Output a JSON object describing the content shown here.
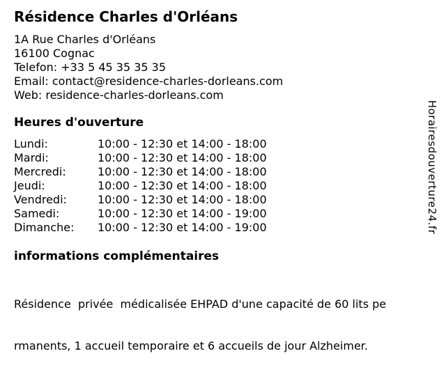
{
  "colors": {
    "text": "#000000",
    "background": "#ffffff"
  },
  "header": {
    "title": "Résidence Charles d'Orléans",
    "address": {
      "street": "1A Rue Charles d'Orléans",
      "city": "16100 Cognac",
      "phone_line": "Telefon: +33 5 45 35 35 35",
      "email_line": "Email: contact@residence-charles-dorleans.com",
      "web_line": "Web: residence-charles-dorleans.com"
    }
  },
  "hours": {
    "heading": "Heures d'ouverture",
    "rows": [
      {
        "day": "Lundi:",
        "times": "10:00 - 12:30 et 14:00 - 18:00"
      },
      {
        "day": "Mardi:",
        "times": "10:00 - 12:30 et 14:00 - 18:00"
      },
      {
        "day": "Mercredi:",
        "times": "10:00 - 12:30 et 14:00 - 18:00"
      },
      {
        "day": "Jeudi:",
        "times": "10:00 - 12:30 et 14:00 - 18:00"
      },
      {
        "day": "Vendredi:",
        "times": "10:00 - 12:30 et 14:00 - 18:00"
      },
      {
        "day": "Samedi:",
        "times": "10:00 - 12:30 et 14:00 - 19:00"
      },
      {
        "day": "Dimanche:",
        "times": "10:00 - 12:30 et 14:00 - 19:00"
      }
    ]
  },
  "info": {
    "heading": "informations complémentaires",
    "line1": "Résidence  privée  médicalisée EHPAD d'une capacité de 60 lits pe",
    "line2": "rmanents, 1 accueil temporaire et 6 accueils de jour Alzheimer."
  },
  "watermark": {
    "text": "Horairesdouverture24.fr"
  }
}
